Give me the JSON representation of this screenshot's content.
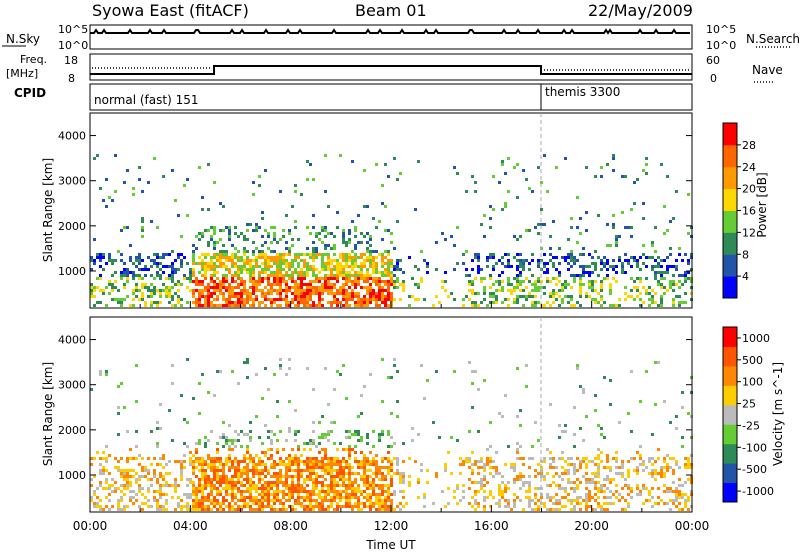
{
  "header": {
    "station": "Syowa East (fitACF)",
    "beam": "Beam 01",
    "date": "22/May/2009"
  },
  "top_panel": {
    "nsky_label": "N.Sky",
    "nsearch_label": "N.Search",
    "log_top_label": "10^5",
    "log_bottom_label": "10^0",
    "freq_label_line1": "Freq.",
    "freq_label_line2": "[MHz]",
    "freq_ticks": [
      "18",
      "8"
    ],
    "nave_ticks": [
      "60",
      "0"
    ],
    "nave_label": "Nave",
    "cpid_label": "CPID",
    "cpid_modes": [
      {
        "name": "normal (fast) 151",
        "start_hour": 0,
        "end_hour": 18
      },
      {
        "name": "themis 3300",
        "start_hour": 18,
        "end_hour": 24
      }
    ]
  },
  "chart_data": [
    {
      "type": "heatmap",
      "title": "",
      "xlabel": "",
      "ylabel": "Slant Range [km]",
      "xlim": [
        0,
        24
      ],
      "ylim": [
        180,
        4500
      ],
      "x_ticks": [],
      "y_ticks": [
        "1000",
        "2000",
        "3000",
        "4000"
      ],
      "colorbar_label": "Power [dB]",
      "colorbar_ticks": [
        "4",
        "8",
        "12",
        "16",
        "20",
        "24",
        "28"
      ],
      "colors": [
        "#0000ff",
        "#2255aa",
        "#2e8b57",
        "#66cc33",
        "#ffd700",
        "#ff9900",
        "#ff6600",
        "#ff0000"
      ]
    },
    {
      "type": "heatmap",
      "title": "",
      "xlabel": "Time UT",
      "ylabel": "Slant Range [km]",
      "xlim": [
        0,
        24
      ],
      "ylim": [
        180,
        4500
      ],
      "x_ticks": [
        "00:00",
        "04:00",
        "08:00",
        "12:00",
        "16:00",
        "20:00",
        "00:00"
      ],
      "y_ticks": [
        "1000",
        "2000",
        "3000",
        "4000"
      ],
      "colorbar_label": "Velocity [m s^-1]",
      "colorbar_ticks": [
        "1000",
        "500",
        "100",
        "25",
        "-25",
        "-100",
        "-500",
        "-1000"
      ],
      "colors": [
        "#0000ff",
        "#2255aa",
        "#2e8b57",
        "#66cc33",
        "#bbbbbb",
        "#ffcc00",
        "#ff8800",
        "#ff5500",
        "#ff0000"
      ]
    }
  ]
}
